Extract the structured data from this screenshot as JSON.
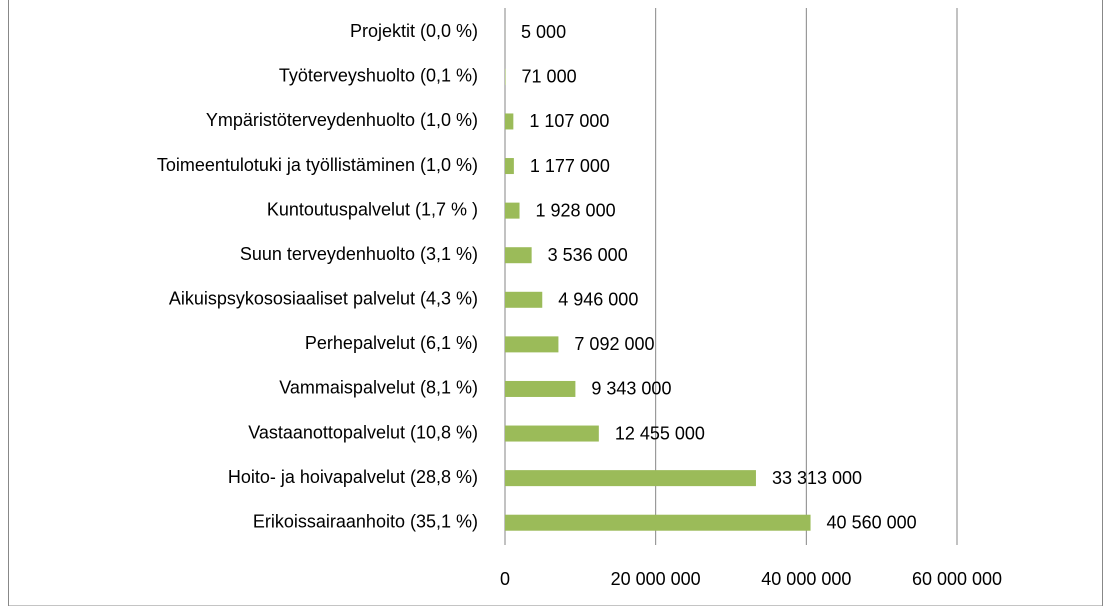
{
  "chart_data": {
    "type": "bar",
    "orientation": "horizontal",
    "categories": [
      "Projektit (0,0 %)",
      "Työterveyshuolto (0,1 %)",
      "Ympäristöterveydenhuolto (1,0 %)",
      "Toimeentulotuki ja työllistäminen (1,0 %)",
      "Kuntoutuspalvelut (1,7 % )",
      "Suun terveydenhuolto (3,1 %)",
      "Aikuispsykososiaaliset palvelut (4,3 %)",
      "Perhepalvelut (6,1 %)",
      "Vammaispalvelut (8,1 %)",
      "Vastaanottopalvelut (10,8 %)",
      "Hoito- ja hoivapalvelut (28,8 %)",
      "Erikoissairaanhoito (35,1 %)"
    ],
    "values": [
      5000,
      71000,
      1107000,
      1177000,
      1928000,
      3536000,
      4946000,
      7092000,
      9343000,
      12455000,
      33313000,
      40560000
    ],
    "value_labels": [
      "5 000",
      "71 000",
      "1 107 000",
      "1 177 000",
      "1 928 000",
      "3 536 000",
      "4 946 000",
      "7 092 000",
      "9 343 000",
      "12 455 000",
      "33 313 000",
      "40 560 000"
    ],
    "color": "#9bbb59",
    "xlim": [
      0,
      60000000
    ],
    "xticks": [
      0,
      {
        "value": 20000000,
        "label": "20 000 000"
      },
      {
        "value": 40000000,
        "label": "40 000 000"
      },
      {
        "value": 60000000,
        "label": "60 000 000"
      }
    ],
    "grid": true
  }
}
